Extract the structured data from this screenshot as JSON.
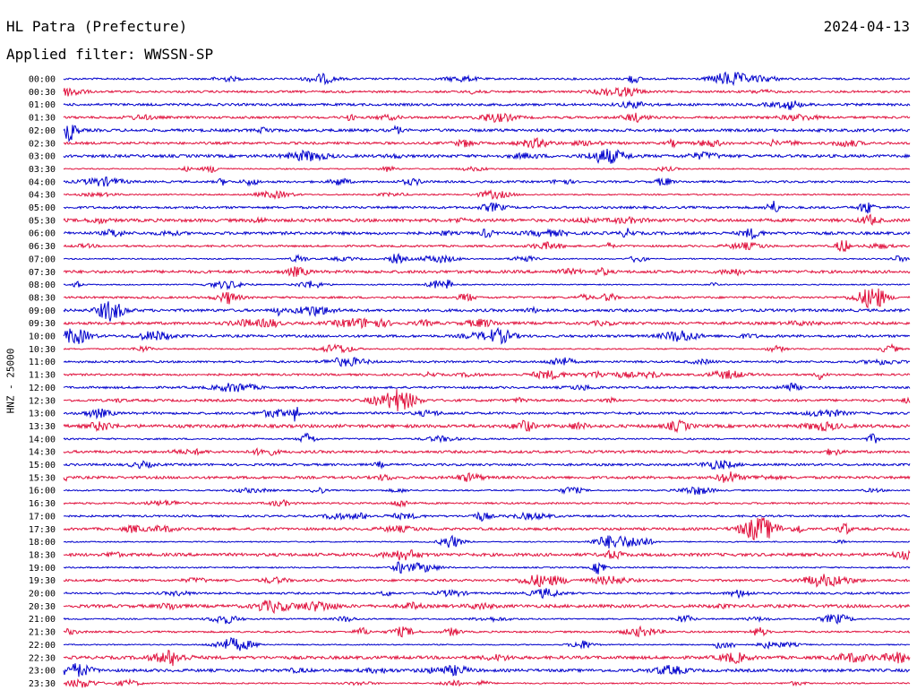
{
  "header": {
    "station": "HL Patra (Prefecture)",
    "filter": "Applied filter: WWSSN-SP",
    "date": "2024-04-13"
  },
  "chart_data": {
    "type": "line",
    "title": "HL Patra (Prefecture)",
    "subtitle": "Applied filter: WWSSN-SP",
    "ylabel": "HNZ - 25000",
    "xlabel": "",
    "line_labels": [
      "00:00",
      "00:30",
      "01:00",
      "01:30",
      "02:00",
      "02:30",
      "03:00",
      "03:30",
      "04:00",
      "04:30",
      "05:00",
      "05:30",
      "06:00",
      "06:30",
      "07:00",
      "07:30",
      "08:00",
      "08:30",
      "09:00",
      "09:30",
      "10:00",
      "10:30",
      "11:00",
      "11:30",
      "12:00",
      "12:30",
      "13:00",
      "13:30",
      "14:00",
      "14:30",
      "15:00",
      "15:30",
      "16:00",
      "16:30",
      "17:00",
      "17:30",
      "18:00",
      "18:30",
      "19:00",
      "19:30",
      "20:00",
      "20:30",
      "21:00",
      "21:30",
      "22:00",
      "22:30",
      "23:00",
      "23:30"
    ],
    "colors": [
      "#0000cc",
      "#e0103c"
    ],
    "grid": false,
    "legend": "none"
  }
}
